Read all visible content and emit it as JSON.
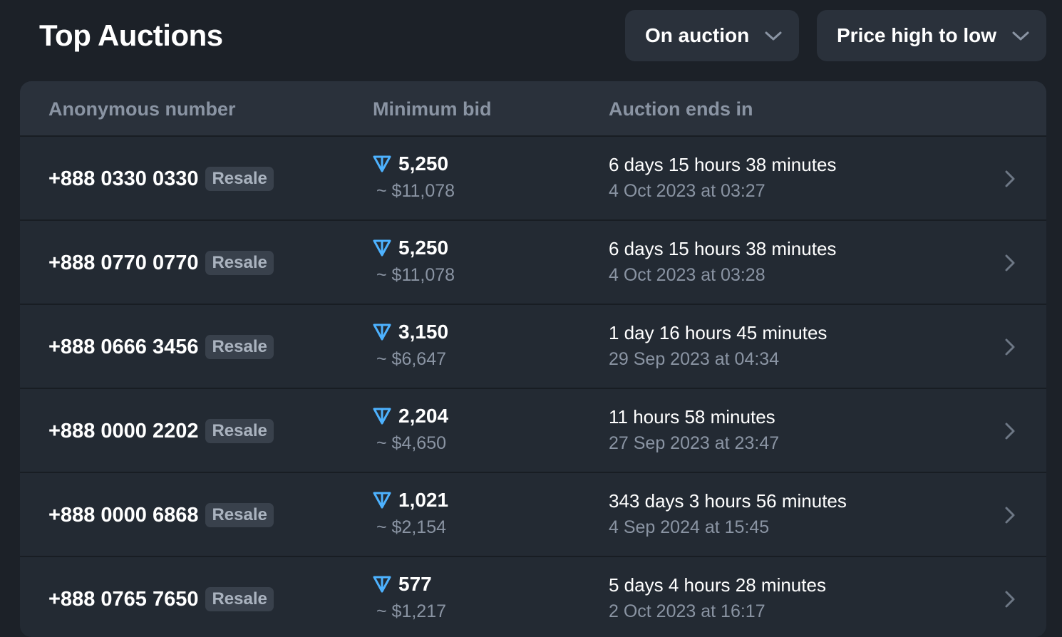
{
  "header": {
    "title": "Top Auctions",
    "status_filter": "On auction",
    "sort_filter": "Price high to low"
  },
  "table": {
    "columns": [
      "Anonymous number",
      "Minimum bid",
      "Auction ends in"
    ],
    "rows": [
      {
        "number": "+888 0330 0330",
        "badge": "Resale",
        "bid": "5,250",
        "usd": "~ $11,078",
        "time_left": "6 days 15 hours 38 minutes",
        "end_date": "4 Oct 2023 at 03:27"
      },
      {
        "number": "+888 0770 0770",
        "badge": "Resale",
        "bid": "5,250",
        "usd": "~ $11,078",
        "time_left": "6 days 15 hours 38 minutes",
        "end_date": "4 Oct 2023 at 03:28"
      },
      {
        "number": "+888 0666 3456",
        "badge": "Resale",
        "bid": "3,150",
        "usd": "~ $6,647",
        "time_left": "1 day 16 hours 45 minutes",
        "end_date": "29 Sep 2023 at 04:34"
      },
      {
        "number": "+888 0000 2202",
        "badge": "Resale",
        "bid": "2,204",
        "usd": "~ $4,650",
        "time_left": "11 hours 58 minutes",
        "end_date": "27 Sep 2023 at 23:47"
      },
      {
        "number": "+888 0000 6868",
        "badge": "Resale",
        "bid": "1,021",
        "usd": "~ $2,154",
        "time_left": "343 days 3 hours 56 minutes",
        "end_date": "4 Sep 2024 at 15:45"
      },
      {
        "number": "+888 0765 7650",
        "badge": "Resale",
        "bid": "577",
        "usd": "~ $1,217",
        "time_left": "5 days 4 hours 28 minutes",
        "end_date": "2 Oct 2023 at 16:17"
      }
    ]
  },
  "icons": {
    "currency": "ton-icon",
    "row_action": "chevron-right-icon",
    "dropdown": "chevron-down-icon"
  },
  "colors": {
    "background": "#1c2128",
    "accent": "#4db2ff",
    "muted_text": "#8a94a3"
  }
}
